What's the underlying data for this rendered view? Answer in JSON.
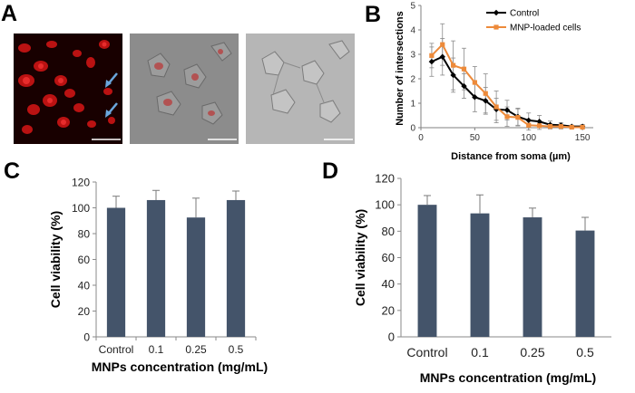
{
  "figure": {
    "panel_labels": [
      "A",
      "B",
      "C",
      "D"
    ],
    "micrographs": [
      {
        "name": "fluorescence",
        "description_hidden": true
      },
      {
        "name": "merged"
      },
      {
        "name": "brightfield"
      }
    ],
    "colors": {
      "fluor_bg": "#1a0000",
      "fluor_cell": "#d41818",
      "merge_bg": "#8a8a8a",
      "bf_bg": "#b4b4b4",
      "arrow": "#6aa6dc",
      "control_line": "#000000",
      "mnp_line": "#ed8a3a",
      "bar_fill": "#44546a"
    }
  },
  "chart_data": [
    {
      "id": "B",
      "type": "line",
      "title": "",
      "xlabel": "Distance from soma (µm)",
      "ylabel": "Number of intersections",
      "xlim": [
        0,
        160
      ],
      "ylim": [
        0,
        5
      ],
      "xticks": [
        0,
        50,
        100,
        150
      ],
      "yticks": [
        0,
        1,
        2,
        3,
        4,
        5
      ],
      "legend_position": "top-right",
      "x": [
        10,
        20,
        30,
        40,
        50,
        60,
        70,
        80,
        90,
        100,
        110,
        120,
        130,
        140,
        150
      ],
      "series": [
        {
          "name": "Control",
          "color": "#000000",
          "marker": "diamond",
          "values": [
            2.7,
            2.9,
            2.15,
            1.7,
            1.25,
            1.1,
            0.75,
            0.72,
            0.45,
            0.3,
            0.25,
            0.12,
            0.1,
            0.05,
            0.05
          ],
          "errors": [
            0.6,
            0.75,
            0.7,
            0.5,
            0.6,
            0.55,
            0.45,
            0.4,
            0.35,
            0.3,
            0.25,
            0.15,
            0.1,
            0.05,
            0.08
          ]
        },
        {
          "name": "MNP-loaded cells",
          "color": "#ed8a3a",
          "marker": "square",
          "values": [
            2.95,
            3.4,
            2.55,
            2.4,
            1.85,
            1.4,
            0.85,
            0.45,
            0.42,
            0.1,
            0.08,
            0.05,
            0.05,
            0.02,
            0.02
          ],
          "errors": [
            0.5,
            0.85,
            1.0,
            0.85,
            0.65,
            0.8,
            0.65,
            0.4,
            0.35,
            0.2,
            0.15,
            0.1,
            0.1,
            0.05,
            0.05
          ]
        }
      ]
    },
    {
      "id": "C",
      "type": "bar",
      "title": "",
      "xlabel": "MNPs concentration (mg/mL)",
      "ylabel": "Cell viability (%)",
      "ylim": [
        0,
        120
      ],
      "yticks": [
        0,
        20,
        40,
        60,
        80,
        100,
        120
      ],
      "categories": [
        "Control",
        "0.1",
        "0.25",
        "0.5"
      ],
      "values": [
        100,
        106,
        92.5,
        106
      ],
      "errors": [
        9,
        7.5,
        15,
        7
      ]
    },
    {
      "id": "D",
      "type": "bar",
      "title": "",
      "xlabel": "MNPs concentration (mg/mL)",
      "ylabel": "Cell viability (%)",
      "ylim": [
        0,
        120
      ],
      "yticks": [
        0,
        20,
        40,
        60,
        80,
        100,
        120
      ],
      "categories": [
        "Control",
        "0.1",
        "0.25",
        "0.5"
      ],
      "values": [
        100,
        93.5,
        90.5,
        80.5
      ],
      "errors": [
        7,
        14,
        7,
        10
      ]
    }
  ]
}
